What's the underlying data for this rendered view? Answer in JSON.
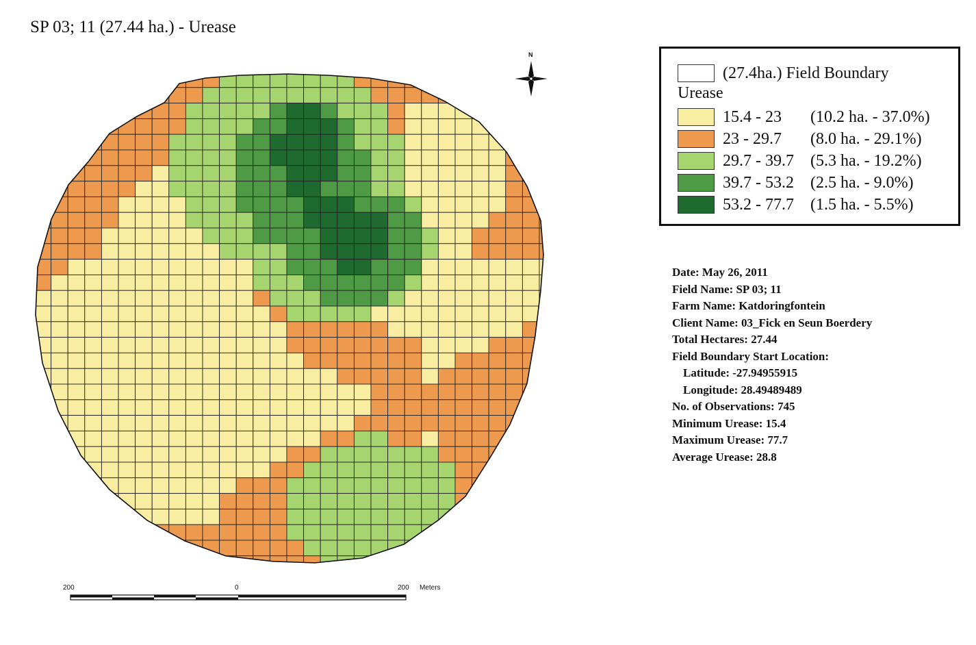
{
  "map": {
    "title": "SP 03; 11 (27.44 ha.) - Urease",
    "north_label": "N",
    "north_arrow_icon": "north-arrow-icon",
    "scale": {
      "left_label": "200",
      "center_label": "0",
      "right_label": "200",
      "unit_label": "Meters"
    },
    "grid": {
      "cols": 31,
      "rows": 32
    },
    "zone_colors": [
      "#f8eda0",
      "#ee9a4e",
      "#a6d46f",
      "#4f9a45",
      "#1f6a2e"
    ]
  },
  "legend": {
    "boundary_label": "(27.4ha.) Field Boundary",
    "heading": "Urease",
    "classes": [
      {
        "range": "15.4 - 23",
        "stats": "(10.2 ha. - 37.0%)",
        "color": "#f8eda0"
      },
      {
        "range": "23 - 29.7",
        "stats": "(8.0 ha. - 29.1%)",
        "color": "#ee9a4e"
      },
      {
        "range": "29.7 - 39.7",
        "stats": "(5.3 ha. - 19.2%)",
        "color": "#a6d46f"
      },
      {
        "range": "39.7 - 53.2",
        "stats": "(2.5 ha. - 9.0%)",
        "color": "#4f9a45"
      },
      {
        "range": "53.2 - 77.7",
        "stats": "(1.5 ha. - 5.5%)",
        "color": "#1f6a2e"
      }
    ]
  },
  "info": {
    "date": "Date: May 26, 2011",
    "field_name": "Field Name: SP 03; 11",
    "farm_name": "Farm Name: Katdoringfontein",
    "client_name": "Client Name: 03_Fick en Seun Boerdery",
    "total_hectares": "Total Hectares: 27.44",
    "start_location": "Field Boundary Start Location:",
    "latitude": "Latitude: -27.94955915",
    "longitude": "Longitude: 28.49489489",
    "observations": "No. of Observations: 745",
    "minimum": "Minimum Urease: 15.4",
    "maximum": "Maximum Urease: 77.7",
    "average": "Average Urease: 28.8"
  }
}
